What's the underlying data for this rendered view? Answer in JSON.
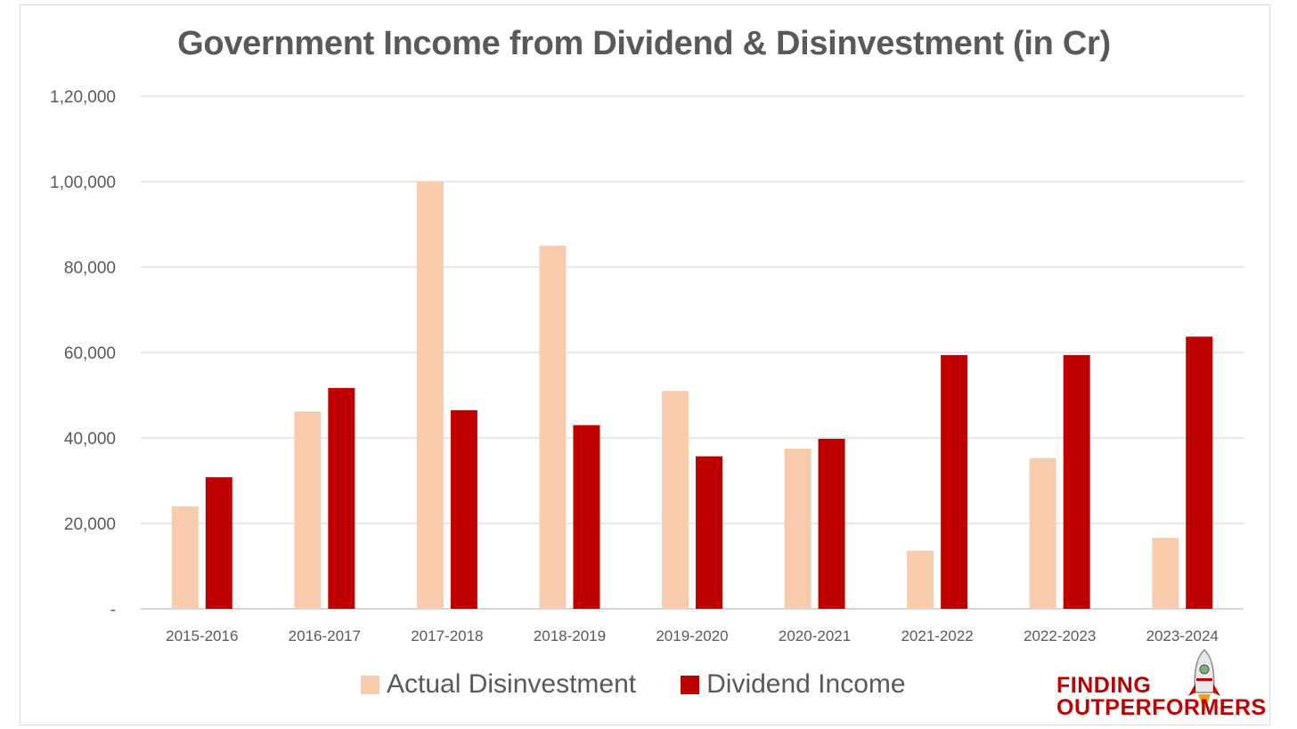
{
  "chart_data": {
    "type": "bar",
    "title": "Government Income from Dividend & Disinvestment (in Cr)",
    "categories": [
      "2015-2016",
      "2016-2017",
      "2017-2018",
      "2018-2019",
      "2019-2020",
      "2020-2021",
      "2021-2022",
      "2022-2023",
      "2023-2024"
    ],
    "series": [
      {
        "name": "Actual Disinvestment",
        "color": "#f8cbad",
        "values": [
          24000,
          46200,
          100000,
          85000,
          51000,
          37500,
          13600,
          35300,
          16600
        ]
      },
      {
        "name": "Dividend Income",
        "color": "#c00000",
        "values": [
          30800,
          51700,
          46500,
          43000,
          35700,
          39800,
          59400,
          59400,
          63700
        ]
      }
    ],
    "yticks": [
      {
        "value": 0,
        "label": "-"
      },
      {
        "value": 20000,
        "label": "20,000"
      },
      {
        "value": 40000,
        "label": "40,000"
      },
      {
        "value": 60000,
        "label": "60,000"
      },
      {
        "value": 80000,
        "label": "80,000"
      },
      {
        "value": 100000,
        "label": "1,00,000"
      },
      {
        "value": 120000,
        "label": "1,20,000"
      }
    ],
    "ylim": [
      0,
      120000
    ],
    "grid": true,
    "legend_position": "bottom"
  },
  "logo": {
    "line1": "FINDING",
    "line2": "OUTPERFORMERS"
  }
}
